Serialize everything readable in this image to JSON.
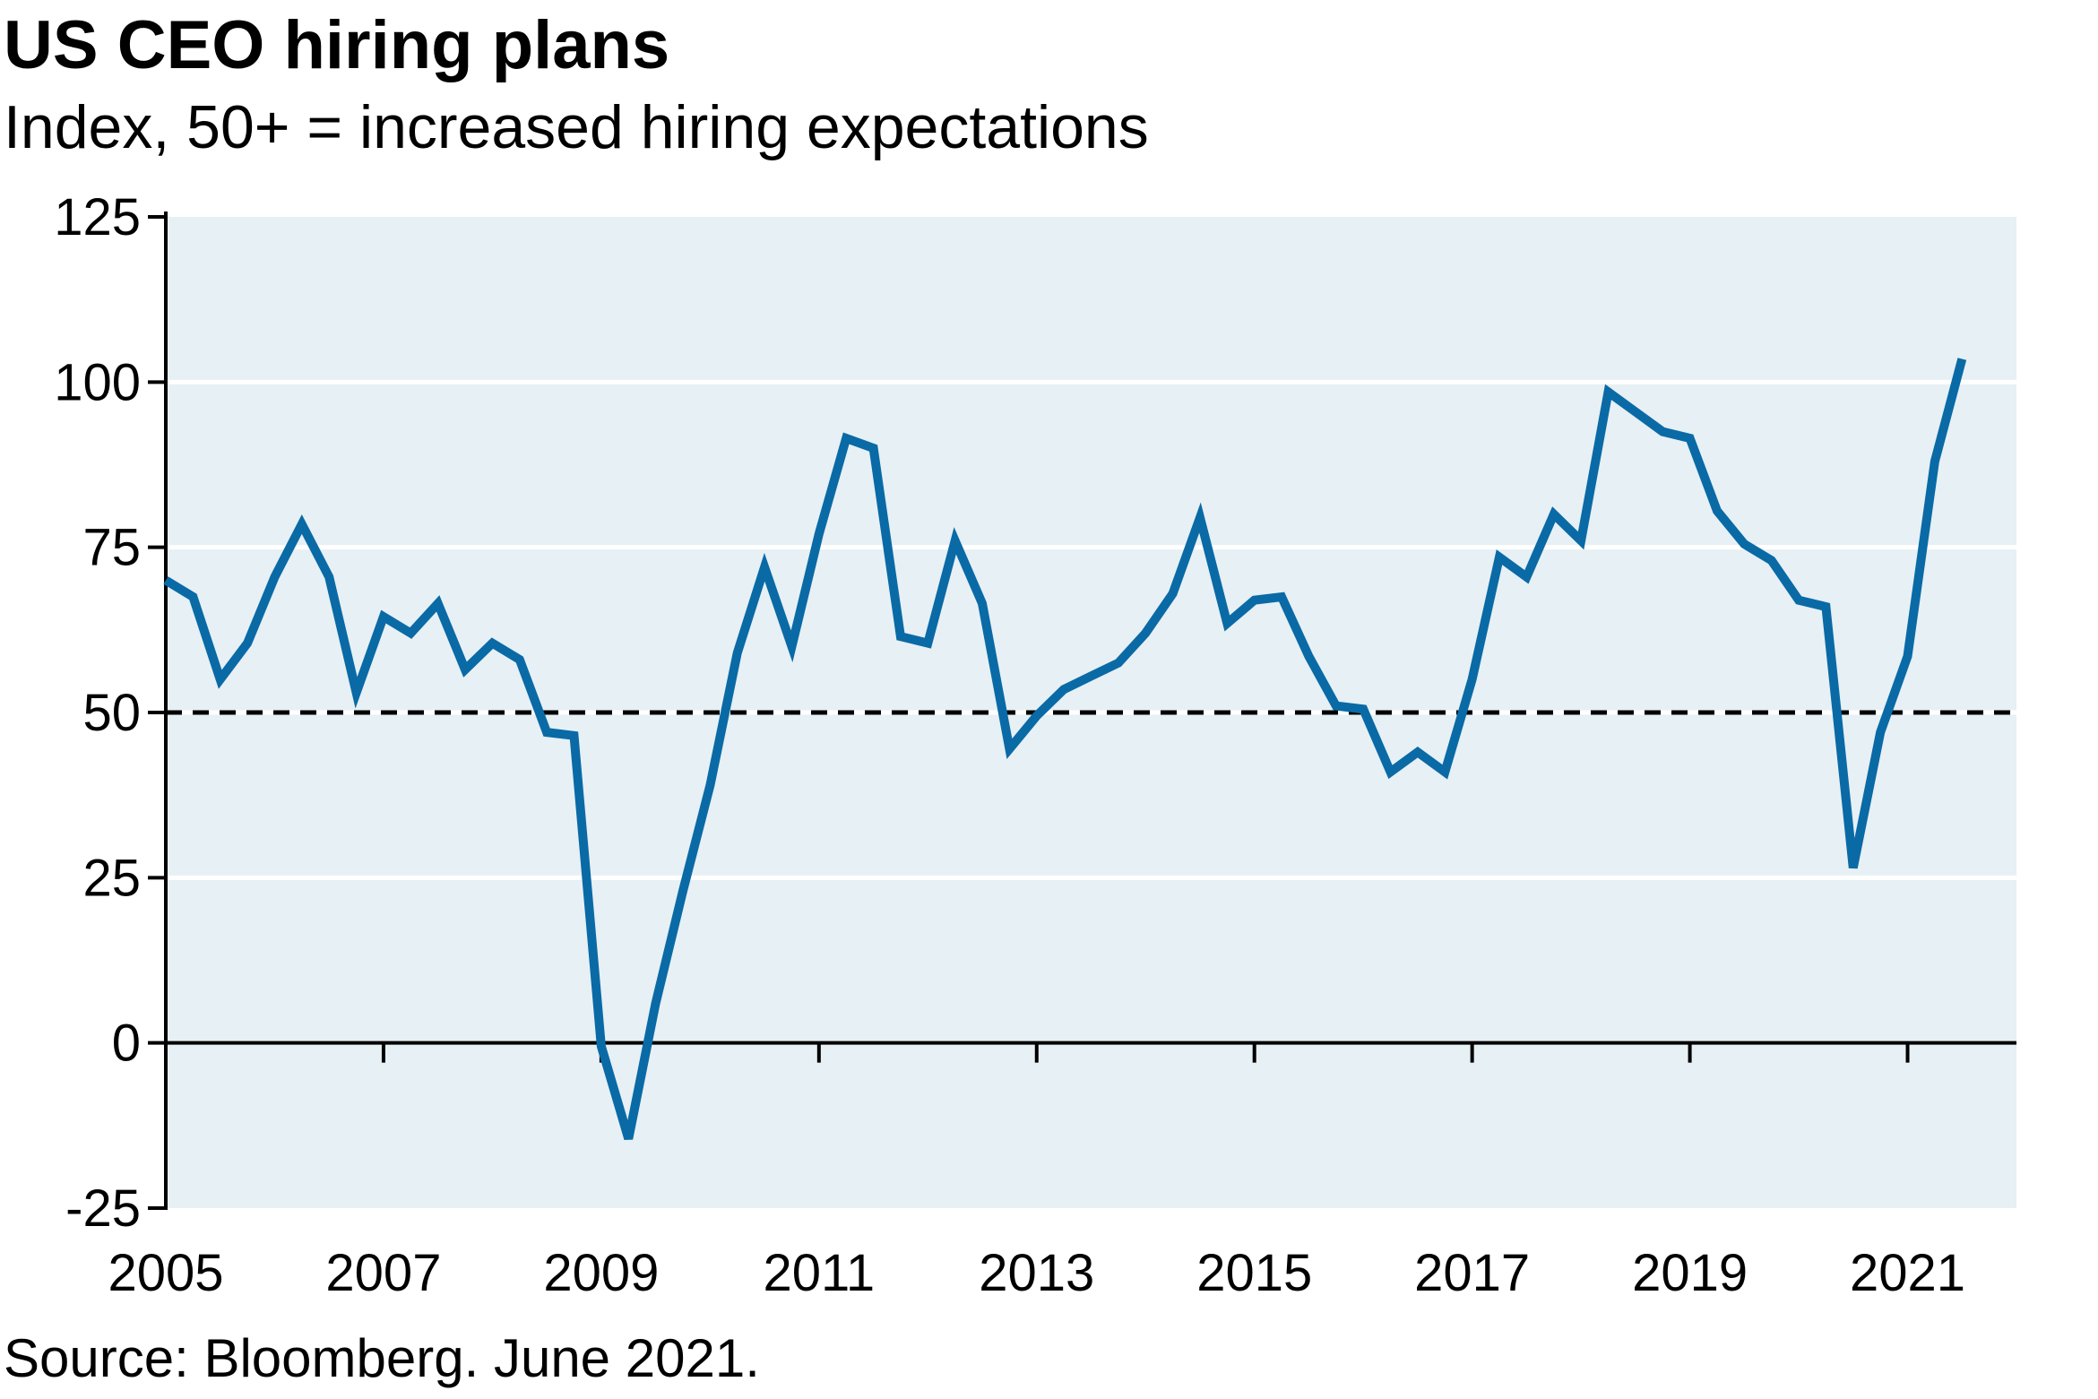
{
  "title": "US CEO hiring plans",
  "subtitle": "Index, 50+ = increased hiring expectations",
  "source": "Source: Bloomberg. June 2021.",
  "colors": {
    "line": "#0a6aa6",
    "plot_bg": "#e7f0f4",
    "grid": "#ffffff",
    "reference": "#000000"
  },
  "chart_data": {
    "type": "line",
    "title": "US CEO hiring plans",
    "subtitle": "Index, 50+ = increased hiring expectations",
    "xlabel": "",
    "ylabel": "",
    "x_range": [
      2005,
      2022
    ],
    "ylim": [
      -25,
      125
    ],
    "y_ticks": [
      125,
      100,
      75,
      50,
      25,
      0,
      -25
    ],
    "x_ticks": [
      2005,
      2007,
      2009,
      2011,
      2013,
      2015,
      2017,
      2019,
      2021
    ],
    "grid": "horizontal",
    "reference_line": {
      "value": 50,
      "style": "dashed"
    },
    "series": [
      {
        "x": [
          2005.0,
          2005.25,
          2005.5,
          2005.75,
          2006.0,
          2006.25,
          2006.5,
          2006.75,
          2007.0,
          2007.25,
          2007.5,
          2007.75,
          2008.0,
          2008.25,
          2008.5,
          2008.75,
          2009.0,
          2009.25,
          2009.5,
          2009.75,
          2010.0,
          2010.25,
          2010.5,
          2010.75,
          2011.0,
          2011.25,
          2011.5,
          2011.75,
          2012.0,
          2012.25,
          2012.5,
          2012.75,
          2013.0,
          2013.25,
          2013.5,
          2013.75,
          2014.0,
          2014.25,
          2014.5,
          2014.75,
          2015.0,
          2015.25,
          2015.5,
          2015.75,
          2016.0,
          2016.25,
          2016.5,
          2016.75,
          2017.0,
          2017.25,
          2017.5,
          2017.75,
          2018.0,
          2018.25,
          2018.5,
          2018.75,
          2019.0,
          2019.25,
          2019.5,
          2019.75,
          2020.0,
          2020.25,
          2020.5,
          2020.75,
          2021.0,
          2021.25,
          2021.5
        ],
        "values": [
          70,
          67.5,
          55,
          60.5,
          70.5,
          78.5,
          70.5,
          53,
          64.5,
          62,
          66.5,
          56.5,
          60.5,
          58,
          47,
          46.5,
          -0.5,
          -14.5,
          6,
          23,
          39,
          59,
          72,
          60,
          77,
          91.5,
          90,
          61.5,
          60.5,
          76,
          66.5,
          44.5,
          49.5,
          53.5,
          55.5,
          57.5,
          62,
          68,
          79.5,
          63.5,
          67,
          67.5,
          58.5,
          51,
          50.5,
          41,
          44,
          41,
          55,
          73.5,
          70.5,
          80,
          76,
          98.5,
          95.5,
          92.5,
          91.5,
          80.5,
          75.5,
          73,
          67,
          66,
          26.5,
          47,
          58.5,
          88,
          103.5
        ]
      }
    ]
  }
}
